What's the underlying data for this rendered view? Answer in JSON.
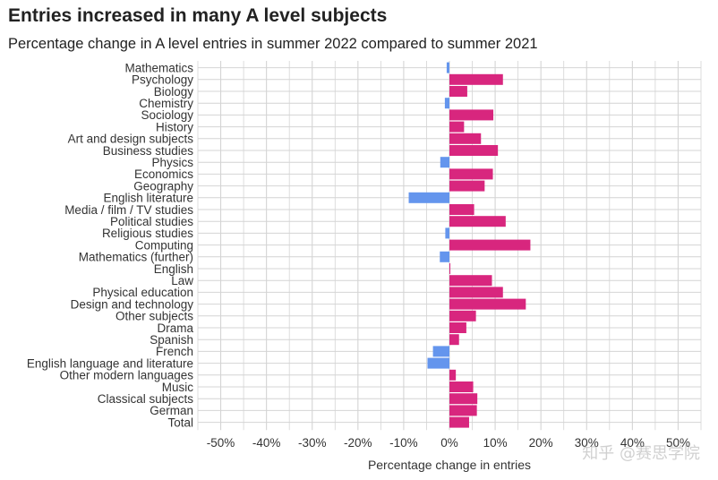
{
  "chart_data": {
    "type": "bar",
    "orientation": "horizontal",
    "title": "Entries increased in many A level subjects",
    "subtitle": "Percentage change in A level entries in summer 2022 compared to summer 2021",
    "xlabel": "Percentage change in entries",
    "ylabel": "",
    "xlim": [
      -55,
      55
    ],
    "xticks": [
      -50,
      -40,
      -30,
      -20,
      -10,
      0,
      10,
      20,
      30,
      40,
      50
    ],
    "xtick_labels": [
      "-50%",
      "-40%",
      "-30%",
      "-20%",
      "-10%",
      "0%",
      "10%",
      "20%",
      "30%",
      "40%",
      "50%"
    ],
    "grid": true,
    "colors": {
      "positive": "#d8267e",
      "negative": "#6495ed"
    },
    "categories": [
      "Mathematics",
      "Psychology",
      "Biology",
      "Chemistry",
      "Sociology",
      "History",
      "Art and design subjects",
      "Business studies",
      "Physics",
      "Economics",
      "Geography",
      "English literature",
      "Media / film / TV studies",
      "Political studies",
      "Religious studies",
      "Computing",
      "Mathematics (further)",
      "English",
      "Law",
      "Physical education",
      "Design and technology",
      "Other subjects",
      "Drama",
      "Spanish",
      "French",
      "English language and literature",
      "Other modern languages",
      "Music",
      "Classical subjects",
      "German",
      "Total"
    ],
    "values": [
      -0.6,
      11.7,
      3.9,
      -1.0,
      9.6,
      3.2,
      6.9,
      10.6,
      -2.0,
      9.5,
      7.7,
      -8.9,
      5.4,
      12.3,
      -0.9,
      17.7,
      -2.1,
      0.2,
      9.3,
      11.7,
      16.7,
      5.8,
      3.7,
      2.1,
      -3.6,
      -4.8,
      1.4,
      5.2,
      6.1,
      6.0,
      4.3
    ]
  },
  "watermark": "知乎 @赛思学院"
}
